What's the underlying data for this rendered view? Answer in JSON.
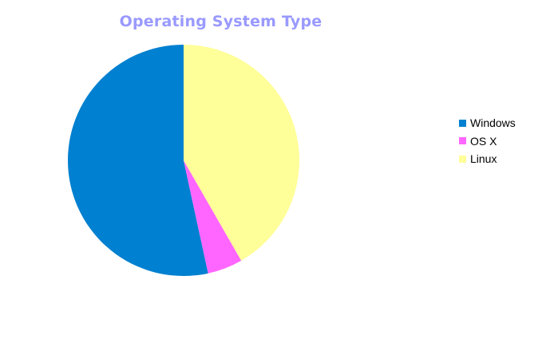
{
  "chart_data": {
    "type": "pie",
    "title": "Operating System Type",
    "series": [
      {
        "categories": [
          "Windows",
          "OS X",
          "Linux"
        ],
        "values": [
          53.4,
          4.9,
          41.7
        ],
        "colors": [
          "#0080d0",
          "#ff66ff",
          "#ffff99"
        ]
      }
    ],
    "start_angle_deg": 0,
    "direction": "counterclockwise",
    "legend": {
      "placement": "right",
      "entries": [
        "Windows",
        "OS X",
        "Linux"
      ]
    }
  }
}
